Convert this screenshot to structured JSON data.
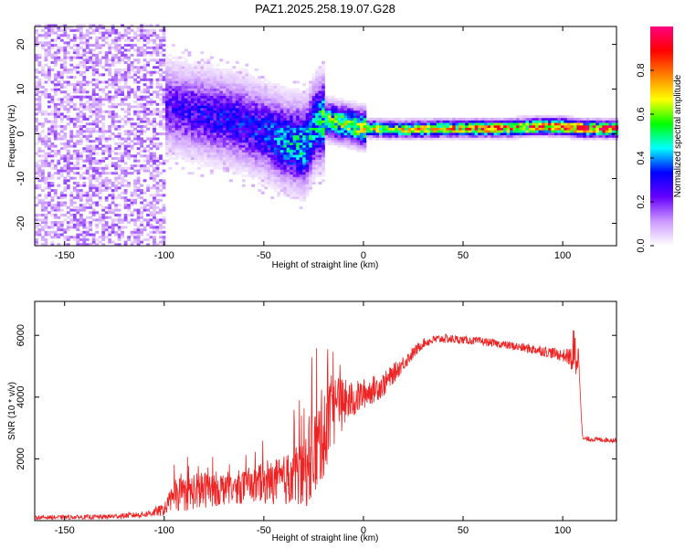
{
  "chart_data": [
    {
      "type": "heatmap",
      "title": "PAZ1.2025.258.19.07.G28",
      "xlabel": "Height of straight line (km)",
      "ylabel": "Frequency (Hz)",
      "xlim": [
        -165,
        127
      ],
      "ylim": [
        -25,
        24
      ],
      "xticks": [
        -150,
        -100,
        -50,
        0,
        50,
        100
      ],
      "yticks": [
        -20,
        -10,
        0,
        10,
        20
      ],
      "xtick_labels": [
        "-150",
        "-100",
        "-50",
        "0",
        "50",
        "100"
      ],
      "ytick_labels": [
        "-20",
        "-10",
        "0",
        "10",
        "20"
      ],
      "colorbar": {
        "label": "Normalized spectral amplitude",
        "range": [
          0,
          1
        ],
        "ticks": [
          0.0,
          0.2,
          0.4,
          0.6,
          0.8
        ],
        "tick_labels": [
          "0.0",
          "0.2",
          "0.4",
          "0.6",
          "0.8"
        ],
        "colors": [
          "#ffffff",
          "#cc99ff",
          "#6600ff",
          "#0000ff",
          "#00ffff",
          "#00ff00",
          "#ffff00",
          "#ff8000",
          "#ff0000",
          "#ff0080"
        ]
      },
      "ridge": {
        "x": [
          -110,
          -100,
          -90,
          -80,
          -70,
          -60,
          -50,
          -40,
          -30,
          -25,
          -20,
          -10,
          0,
          10,
          20,
          30,
          40,
          50,
          60,
          70,
          80,
          90,
          100,
          110,
          127
        ],
        "y": [
          8,
          6,
          5,
          4,
          3,
          2,
          0,
          -2,
          -3,
          2,
          3,
          2,
          1,
          0.8,
          0.7,
          0.8,
          1,
          1,
          1,
          1,
          1.2,
          1.5,
          1.3,
          0.9,
          0.9
        ],
        "amplitude": [
          0.2,
          0.25,
          0.28,
          0.3,
          0.32,
          0.33,
          0.35,
          0.45,
          0.5,
          0.45,
          0.6,
          0.65,
          0.7,
          0.7,
          0.72,
          0.75,
          0.8,
          0.82,
          0.85,
          0.85,
          0.85,
          0.9,
          0.9,
          0.95,
          0.95
        ]
      }
    },
    {
      "type": "line",
      "xlabel": "Height of straight line (km)",
      "ylabel": "SNR (10 * v/v)",
      "xlim": [
        -165,
        127
      ],
      "ylim": [
        0,
        7100
      ],
      "xticks": [
        -150,
        -100,
        -50,
        0,
        50,
        100
      ],
      "yticks": [
        2000,
        4000,
        6000
      ],
      "xtick_labels": [
        "-150",
        "-100",
        "-50",
        "0",
        "50",
        "100"
      ],
      "ytick_labels": [
        "2000",
        "4000",
        "6000"
      ],
      "line_color": "#ee2222",
      "envelope": {
        "x": [
          -165,
          -130,
          -110,
          -100,
          -95,
          -90,
          -80,
          -70,
          -60,
          -50,
          -40,
          -30,
          -25,
          -20,
          -15,
          -10,
          -5,
          0,
          10,
          20,
          30,
          35,
          40,
          50,
          60,
          70,
          80,
          90,
          100,
          104,
          105,
          106,
          107,
          108,
          110,
          127
        ],
        "y": [
          100,
          120,
          200,
          350,
          800,
          900,
          1000,
          1050,
          1100,
          1200,
          1300,
          1600,
          2100,
          2900,
          3600,
          3800,
          3900,
          4100,
          4400,
          5100,
          5750,
          5850,
          5900,
          5850,
          5800,
          5700,
          5600,
          5500,
          5350,
          5300,
          5250,
          5300,
          5400,
          5300,
          2650,
          2600
        ],
        "noise": [
          60,
          80,
          100,
          200,
          500,
          600,
          600,
          550,
          550,
          650,
          800,
          1200,
          1600,
          1500,
          1200,
          800,
          600,
          500,
          400,
          250,
          150,
          150,
          150,
          130,
          130,
          130,
          150,
          180,
          200,
          300,
          1000,
          1000,
          900,
          300,
          80,
          80
        ]
      }
    }
  ]
}
